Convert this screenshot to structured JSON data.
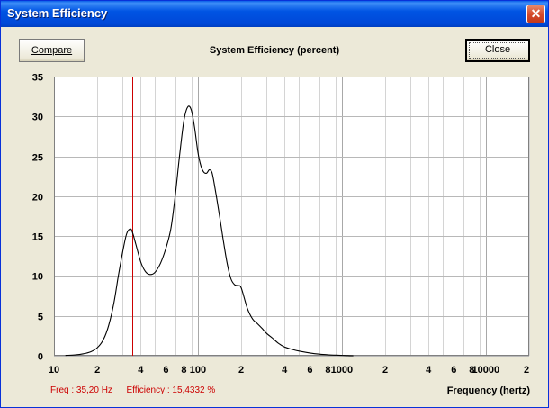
{
  "window": {
    "title": "System Efficiency",
    "close_glyph": "✕"
  },
  "toolbar": {
    "compare_label": "Compare",
    "close_label": "Close"
  },
  "readout": {
    "freq": "Freq : 35,20 Hz",
    "efficiency": "Efficiency : 15,4332 %"
  },
  "chart_data": {
    "type": "line",
    "title": "System Efficiency (percent)",
    "xlabel": "Frequency (hertz)",
    "ylabel": "",
    "x_scale": "log",
    "xlim": [
      10,
      20000
    ],
    "ylim": [
      0,
      35
    ],
    "grid": true,
    "y_ticks": [
      "0",
      "5",
      "10",
      "15",
      "20",
      "25",
      "30",
      "35"
    ],
    "x_ticks": [
      "10",
      "2",
      "4",
      "6",
      "8",
      "100",
      "2",
      "4",
      "6",
      "8",
      "1000",
      "2",
      "4",
      "6",
      "8",
      "10000",
      "2"
    ],
    "cursor_x": 35.2,
    "series": [
      {
        "x": [
          12,
          14,
          16,
          18,
          20,
          22,
          24,
          26,
          28,
          30,
          32,
          34,
          35.2,
          37,
          40,
          43,
          46,
          50,
          55,
          60,
          65,
          70,
          75,
          80,
          85,
          90,
          95,
          100,
          105,
          110,
          115,
          120,
          125,
          130,
          140,
          150,
          160,
          170,
          180,
          190,
          200,
          220,
          240,
          260,
          280,
          300,
          330,
          360,
          400,
          450,
          500,
          600,
          700,
          800,
          1000,
          1100,
          1200
        ],
        "y": [
          0.05,
          0.1,
          0.25,
          0.5,
          1.0,
          2.0,
          3.8,
          6.5,
          10.0,
          13.0,
          15.3,
          15.9,
          15.4,
          14.0,
          11.8,
          10.6,
          10.2,
          10.4,
          11.6,
          13.5,
          16.0,
          20.5,
          25.5,
          29.5,
          31.2,
          30.8,
          28.5,
          25.5,
          23.8,
          23.0,
          22.9,
          23.3,
          23.0,
          21.5,
          18.0,
          14.5,
          11.5,
          9.6,
          8.9,
          8.8,
          8.5,
          6.0,
          4.6,
          4.0,
          3.4,
          2.8,
          2.2,
          1.6,
          1.1,
          0.8,
          0.6,
          0.35,
          0.2,
          0.12,
          0.05,
          0.02,
          0.0
        ]
      }
    ]
  }
}
